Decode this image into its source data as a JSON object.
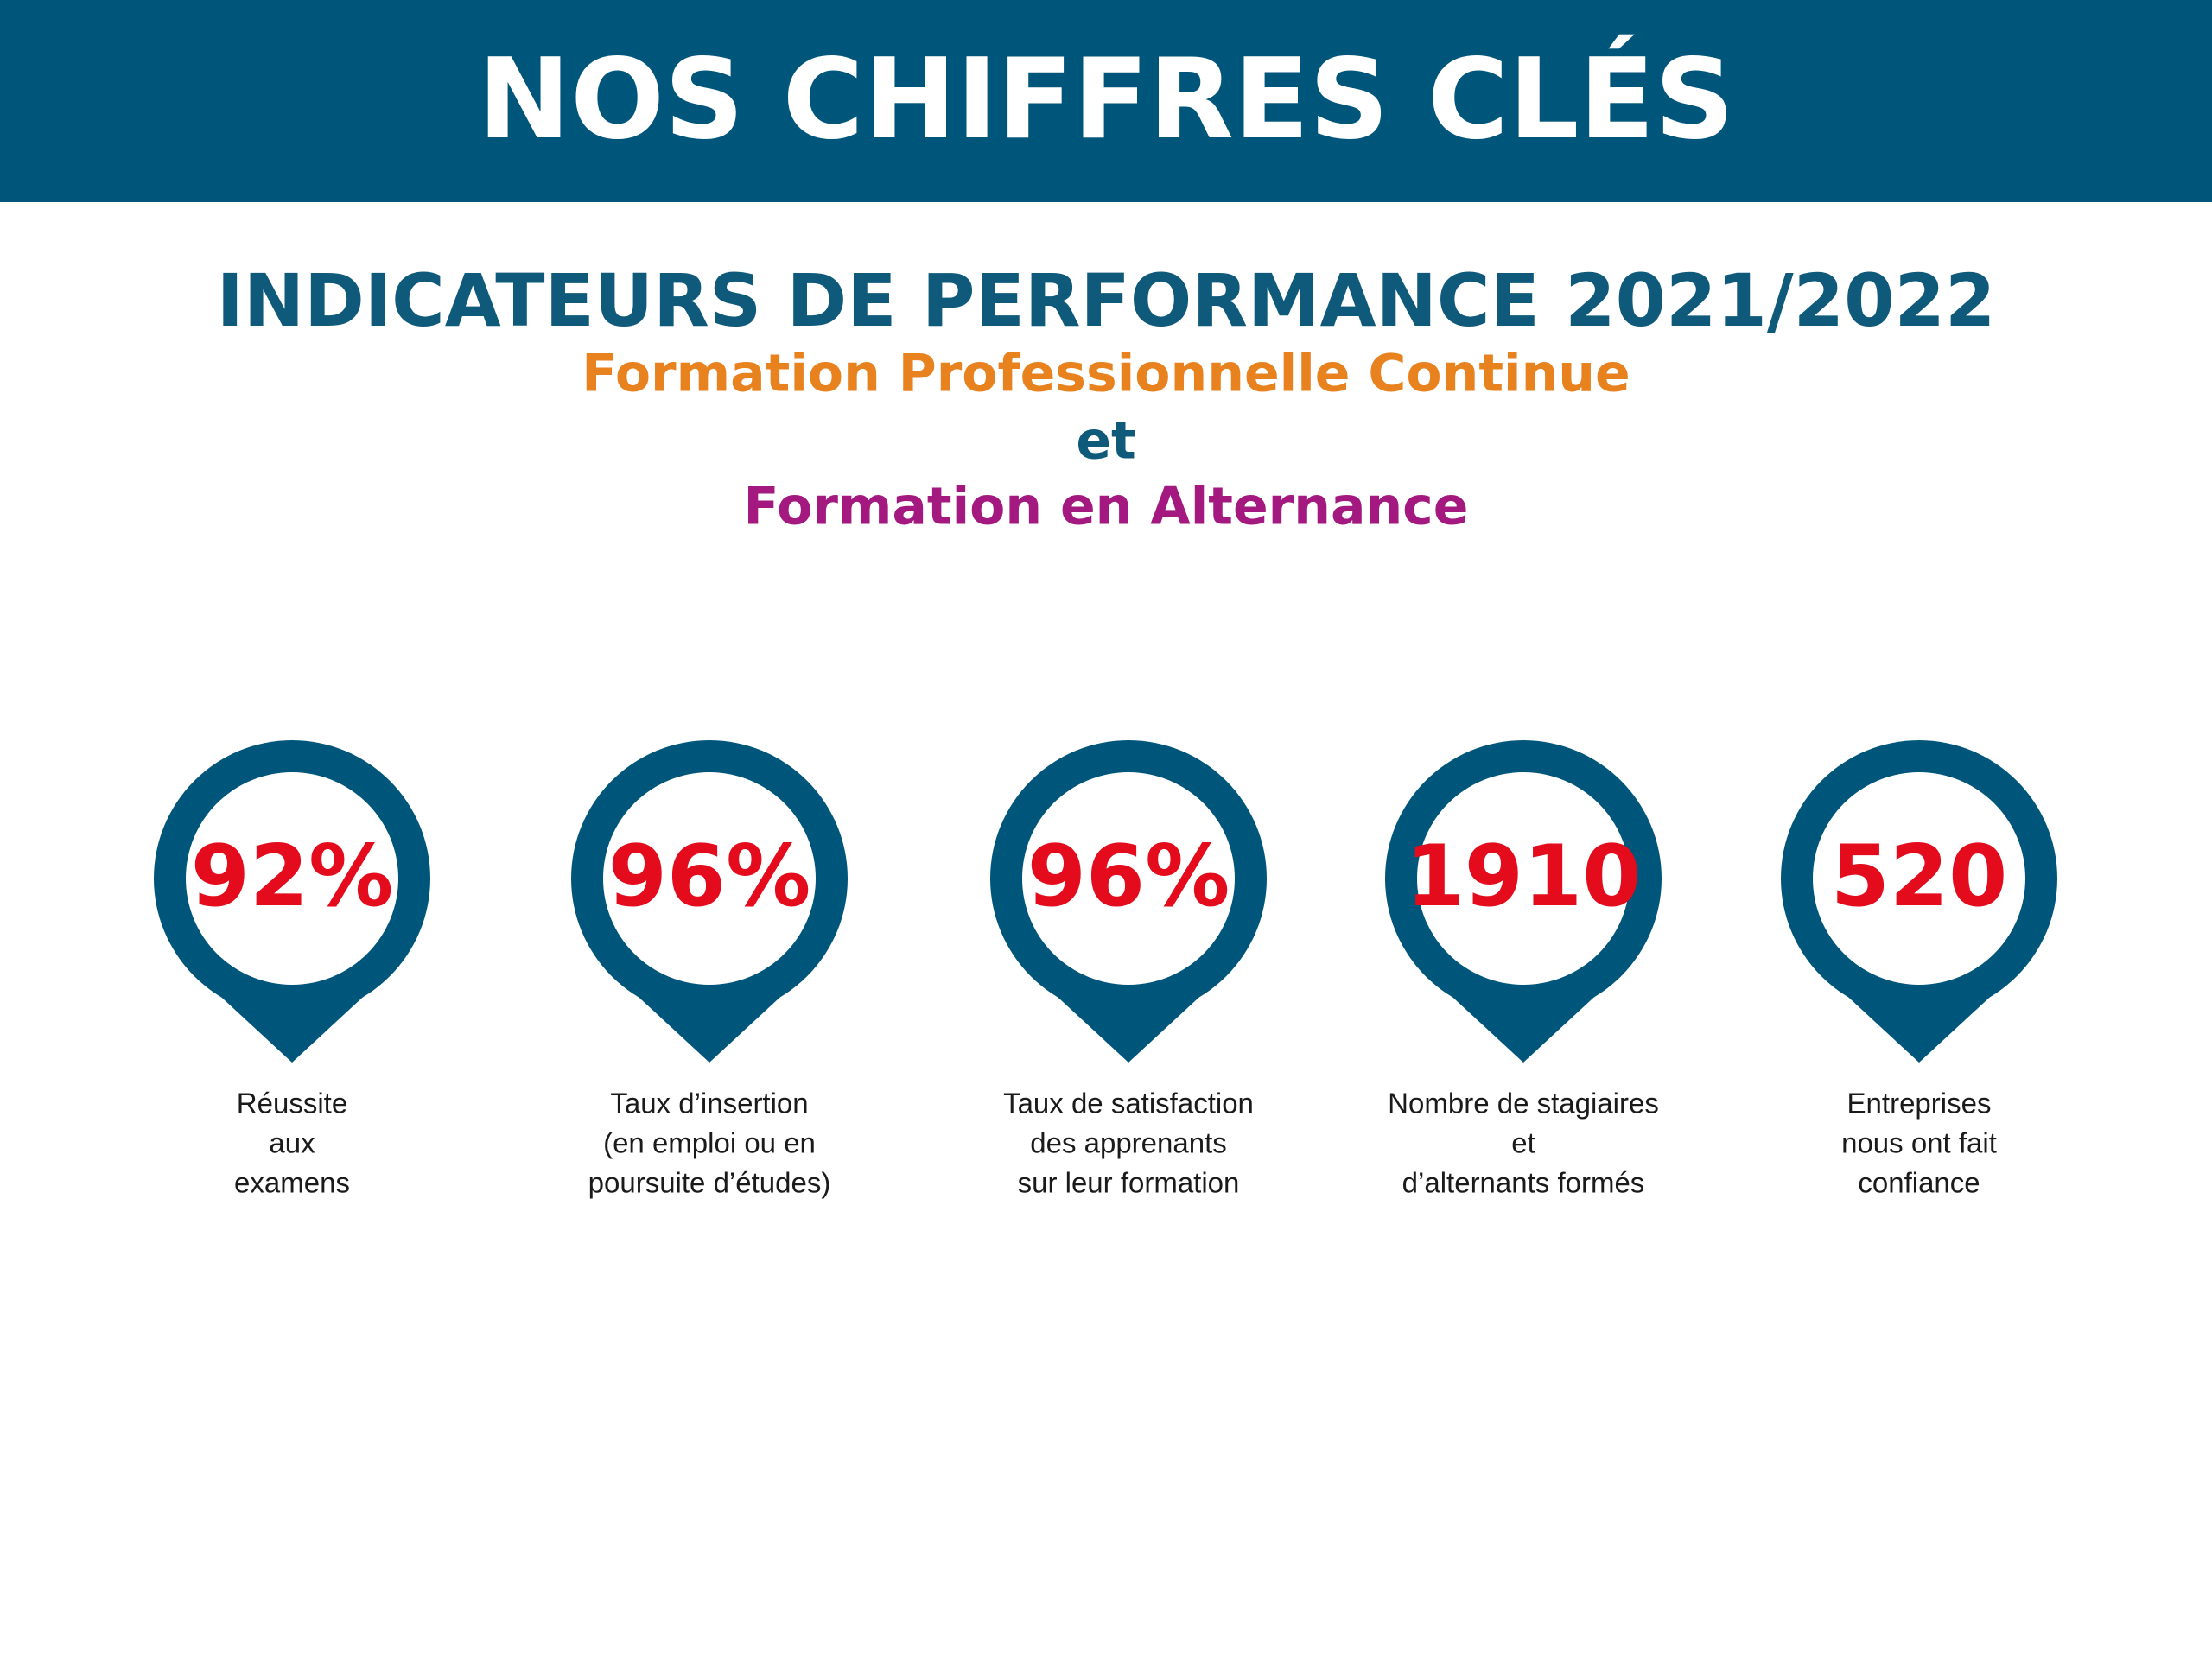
{
  "header": {
    "title": "NOS CHIFFRES CLÉS"
  },
  "subtitle": {
    "main": "INDICATEURS DE PERFORMANCE 2021/2022",
    "line1": "Formation Professionnelle Continue",
    "line2": "et",
    "line3": "Formation en Alternance"
  },
  "items": [
    {
      "value": "92%",
      "label": [
        "Réussite",
        "aux",
        "examens"
      ]
    },
    {
      "value": "96%",
      "label": [
        "Taux d’insertion",
        "(en emploi ou en",
        "poursuite d’études)"
      ]
    },
    {
      "value": "96%",
      "label": [
        "Taux de satisfaction",
        "des apprenants",
        "sur leur formation"
      ]
    },
    {
      "value": "1910",
      "label": [
        "Nombre de stagiaires",
        "et",
        "d’alternants formés"
      ]
    },
    {
      "value": "520",
      "label": [
        "Entreprises",
        "nous ont fait",
        "confiance"
      ]
    }
  ]
}
